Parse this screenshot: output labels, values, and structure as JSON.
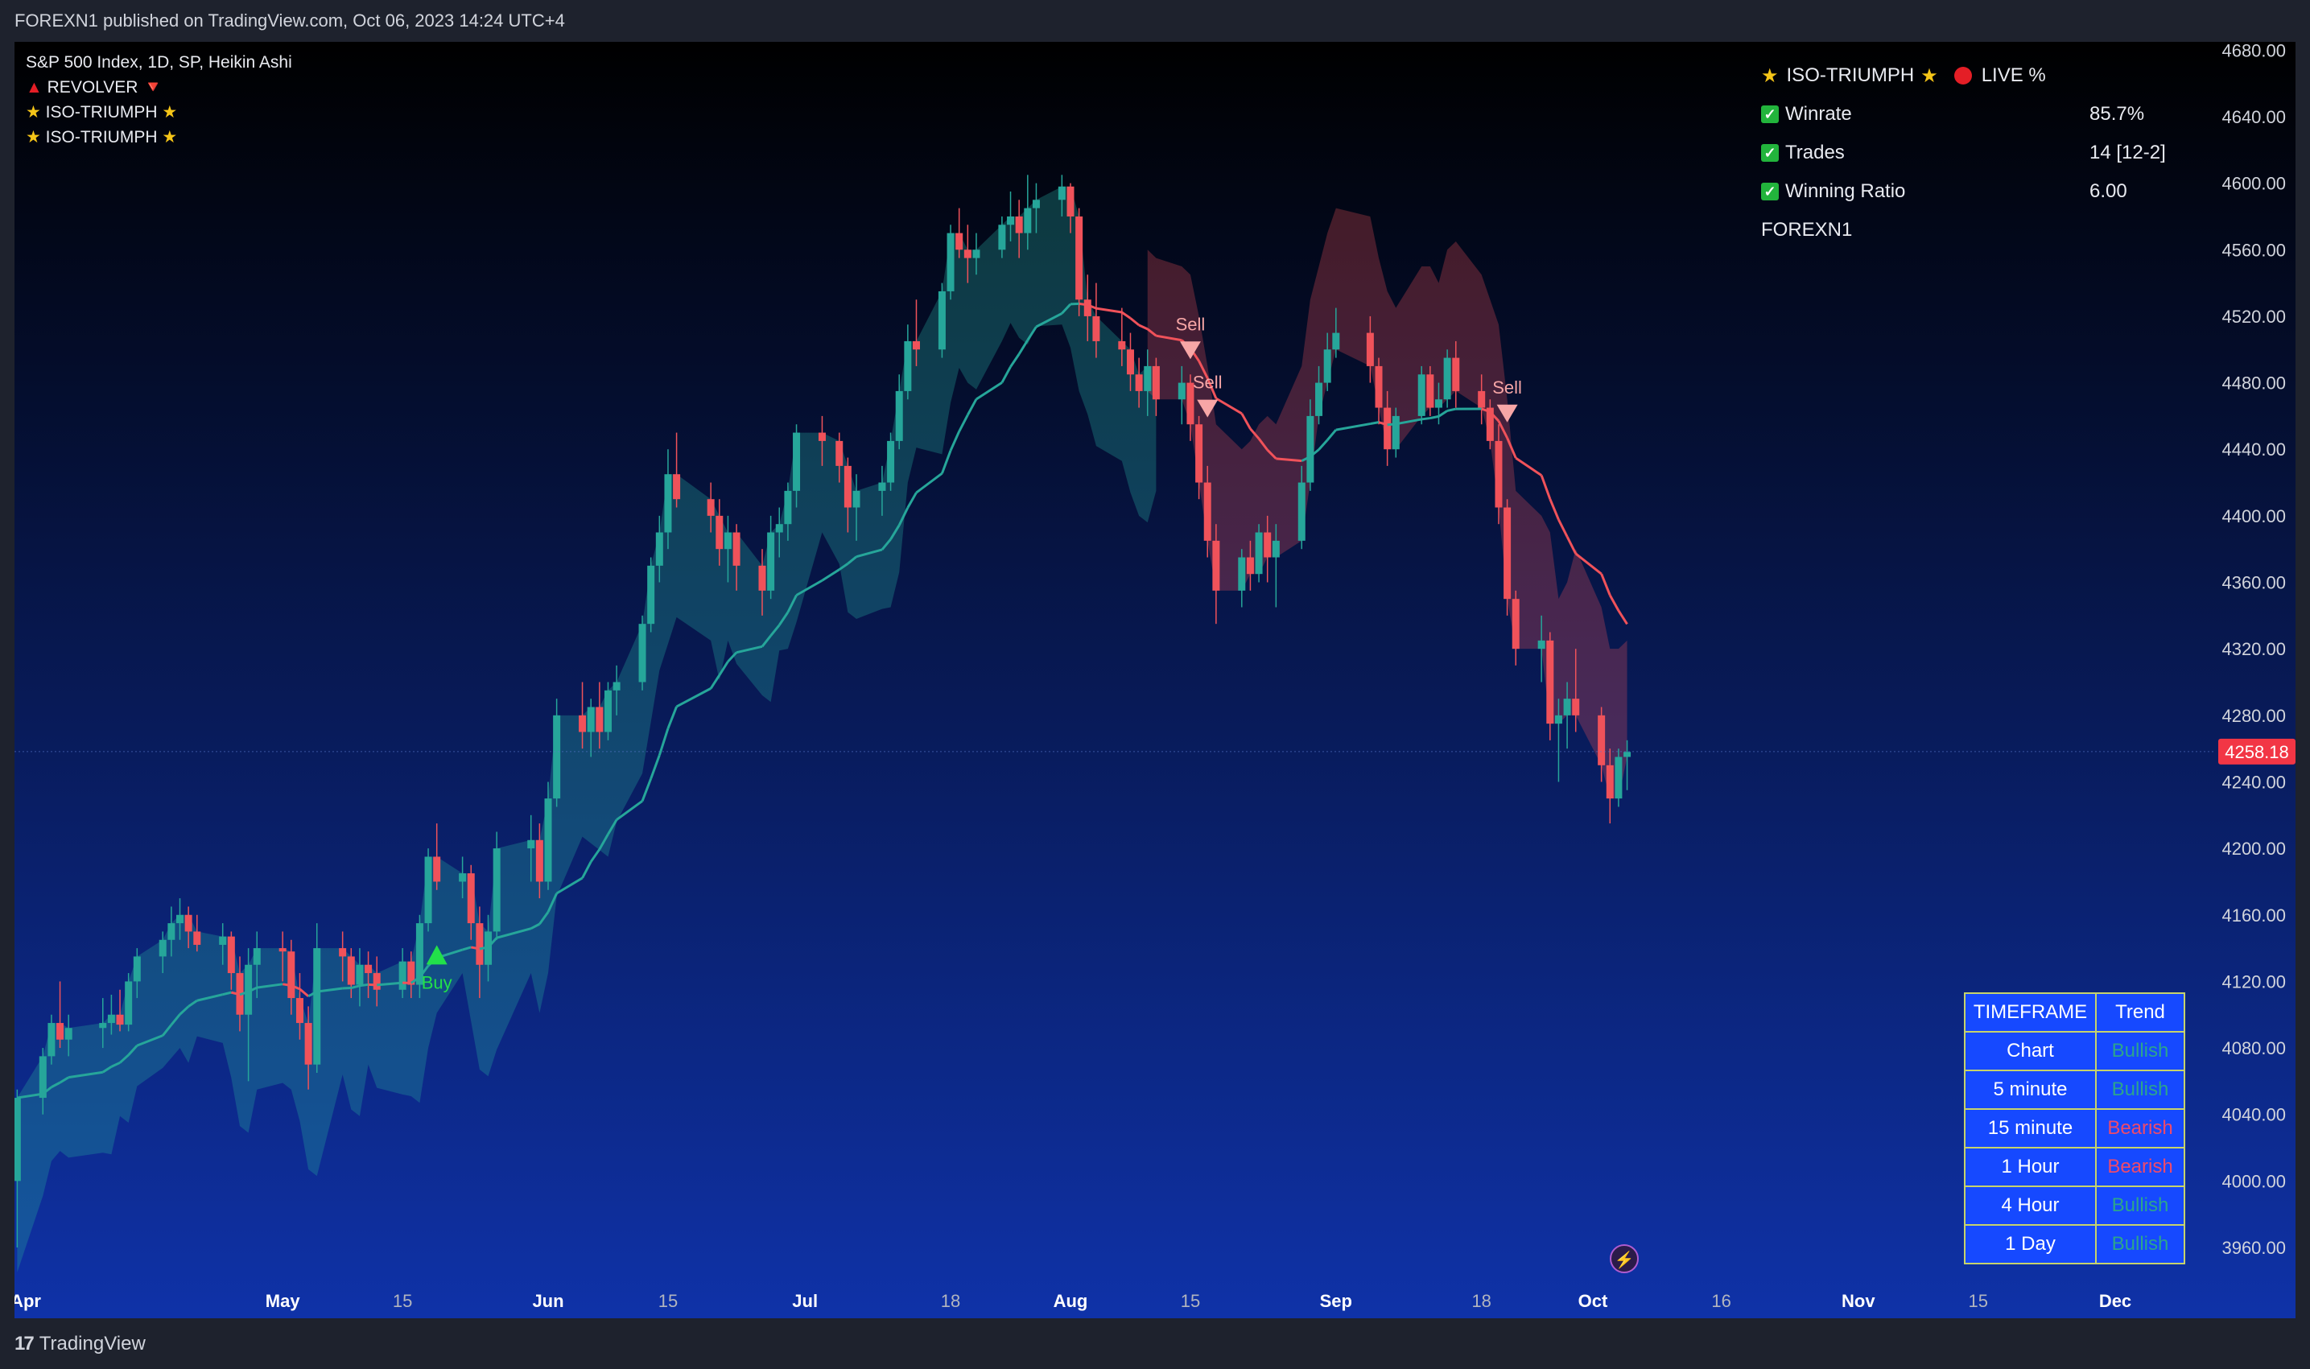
{
  "header": {
    "published": "FOREXN1 published on TradingView.com, Oct 06, 2023 14:24 UTC+4"
  },
  "footer": {
    "brand": "TradingView"
  },
  "legend": {
    "symbol": "S&P 500 Index, 1D, SP, Heikin Ashi",
    "indicator1": "REVOLVER",
    "indicator2": "ISO-TRIUMPH",
    "indicator3": "ISO-TRIUMPH"
  },
  "stats": {
    "title": "ISO-TRIUMPH",
    "live": "LIVE %",
    "rows": [
      {
        "label": "Winrate",
        "value": "85.7%"
      },
      {
        "label": "Trades",
        "value": "14 [12-2]"
      },
      {
        "label": "Winning Ratio",
        "value": "6.00"
      }
    ],
    "author": "FOREXN1"
  },
  "trend_table": {
    "headers": [
      "TIMEFRAME",
      "Trend"
    ],
    "rows": [
      {
        "tf": "Chart",
        "trend": "Bullish"
      },
      {
        "tf": "5 minute",
        "trend": "Bullish"
      },
      {
        "tf": "15 minute",
        "trend": "Bearish"
      },
      {
        "tf": "1 Hour",
        "trend": "Bearish"
      },
      {
        "tf": "4 Hour",
        "trend": "Bullish"
      },
      {
        "tf": "1 Day",
        "trend": "Bullish"
      }
    ]
  },
  "colors": {
    "bull": "#26a69a",
    "bear": "#f0525a",
    "price_label": "#f23645",
    "bg_top": "#000000",
    "bg_bottom": "#0f32a8"
  },
  "chart_data": {
    "type": "candlestick",
    "last_price": "4258.18",
    "y_ticks": [
      "4680.00",
      "4640.00",
      "4600.00",
      "4560.00",
      "4520.00",
      "4480.00",
      "4440.00",
      "4400.00",
      "4360.00",
      "4320.00",
      "4280.00",
      "4240.00",
      "4200.00",
      "4160.00",
      "4120.00",
      "4080.00",
      "4040.00",
      "4000.00",
      "3960.00"
    ],
    "x_ticks": [
      "Apr",
      "May",
      "15",
      "Jun",
      "15",
      "Jul",
      "18",
      "Aug",
      "15",
      "Sep",
      "18",
      "Oct",
      "16",
      "Nov",
      "15",
      "Dec"
    ],
    "ylim": [
      3930,
      4685
    ],
    "signals": [
      {
        "label": "Buy",
        "date": "2023-05-19",
        "price": 4135
      },
      {
        "label": "Sell",
        "date": "2023-08-15",
        "price": 4500
      },
      {
        "label": "Sell",
        "date": "2023-08-17",
        "price": 4465
      },
      {
        "label": "Sell",
        "date": "2023-09-21",
        "price": 4462
      }
    ],
    "candles": [
      [
        "2023-03-31",
        4000,
        4055,
        3960,
        4050
      ],
      [
        "2023-04-03",
        4050,
        4080,
        4040,
        4075
      ],
      [
        "2023-04-04",
        4075,
        4100,
        4070,
        4095
      ],
      [
        "2023-04-05",
        4095,
        4120,
        4080,
        4085
      ],
      [
        "2023-04-06",
        4085,
        4100,
        4075,
        4092
      ],
      [
        "2023-04-10",
        4092,
        4110,
        4080,
        4095
      ],
      [
        "2023-04-11",
        4095,
        4112,
        4088,
        4100
      ],
      [
        "2023-04-12",
        4100,
        4115,
        4090,
        4094
      ],
      [
        "2023-04-13",
        4094,
        4125,
        4090,
        4120
      ],
      [
        "2023-04-14",
        4120,
        4140,
        4110,
        4135
      ],
      [
        "2023-04-17",
        4135,
        4150,
        4125,
        4145
      ],
      [
        "2023-04-18",
        4145,
        4165,
        4135,
        4155
      ],
      [
        "2023-04-19",
        4155,
        4170,
        4145,
        4160
      ],
      [
        "2023-04-20",
        4160,
        4165,
        4140,
        4150
      ],
      [
        "2023-04-21",
        4150,
        4160,
        4138,
        4142
      ],
      [
        "2023-04-24",
        4142,
        4155,
        4130,
        4147
      ],
      [
        "2023-04-25",
        4147,
        4150,
        4115,
        4125
      ],
      [
        "2023-04-26",
        4125,
        4135,
        4090,
        4100
      ],
      [
        "2023-04-27",
        4100,
        4140,
        4060,
        4130
      ],
      [
        "2023-04-28",
        4130,
        4150,
        4110,
        4140
      ],
      [
        "2023-05-01",
        4140,
        4150,
        4120,
        4138
      ],
      [
        "2023-05-02",
        4138,
        4145,
        4100,
        4110
      ],
      [
        "2023-05-03",
        4110,
        4125,
        4085,
        4095
      ],
      [
        "2023-05-04",
        4095,
        4105,
        4055,
        4070
      ],
      [
        "2023-05-05",
        4070,
        4155,
        4065,
        4140
      ],
      [
        "2023-05-08",
        4140,
        4150,
        4120,
        4135
      ],
      [
        "2023-05-09",
        4135,
        4140,
        4110,
        4118
      ],
      [
        "2023-05-10",
        4118,
        4140,
        4105,
        4130
      ],
      [
        "2023-05-11",
        4130,
        4138,
        4110,
        4125
      ],
      [
        "2023-05-12",
        4125,
        4135,
        4105,
        4115
      ],
      [
        "2023-05-15",
        4115,
        4140,
        4110,
        4132
      ],
      [
        "2023-05-16",
        4132,
        4138,
        4110,
        4118
      ],
      [
        "2023-05-17",
        4118,
        4160,
        4110,
        4155
      ],
      [
        "2023-05-18",
        4155,
        4200,
        4150,
        4195
      ],
      [
        "2023-05-19",
        4195,
        4215,
        4175,
        4180
      ],
      [
        "2023-05-22",
        4180,
        4195,
        4170,
        4185
      ],
      [
        "2023-05-23",
        4185,
        4190,
        4145,
        4155
      ],
      [
        "2023-05-24",
        4155,
        4165,
        4110,
        4130
      ],
      [
        "2023-05-25",
        4130,
        4160,
        4120,
        4150
      ],
      [
        "2023-05-26",
        4150,
        4210,
        4145,
        4200
      ],
      [
        "2023-05-30",
        4200,
        4220,
        4180,
        4205
      ],
      [
        "2023-05-31",
        4205,
        4215,
        4170,
        4180
      ],
      [
        "2023-06-01",
        4180,
        4240,
        4175,
        4230
      ],
      [
        "2023-06-02",
        4230,
        4290,
        4225,
        4280
      ],
      [
        "2023-06-05",
        4280,
        4300,
        4260,
        4270
      ],
      [
        "2023-06-06",
        4270,
        4290,
        4255,
        4285
      ],
      [
        "2023-06-07",
        4285,
        4300,
        4260,
        4270
      ],
      [
        "2023-06-08",
        4270,
        4300,
        4265,
        4295
      ],
      [
        "2023-06-09",
        4295,
        4310,
        4280,
        4300
      ],
      [
        "2023-06-12",
        4300,
        4340,
        4295,
        4335
      ],
      [
        "2023-06-13",
        4335,
        4375,
        4330,
        4370
      ],
      [
        "2023-06-14",
        4370,
        4400,
        4360,
        4390
      ],
      [
        "2023-06-15",
        4390,
        4440,
        4380,
        4425
      ],
      [
        "2023-06-16",
        4425,
        4450,
        4405,
        4410
      ],
      [
        "2023-06-20",
        4410,
        4420,
        4390,
        4400
      ],
      [
        "2023-06-21",
        4400,
        4410,
        4370,
        4380
      ],
      [
        "2023-06-22",
        4380,
        4400,
        4360,
        4390
      ],
      [
        "2023-06-23",
        4390,
        4395,
        4355,
        4370
      ],
      [
        "2023-06-26",
        4370,
        4380,
        4340,
        4355
      ],
      [
        "2023-06-27",
        4355,
        4400,
        4350,
        4390
      ],
      [
        "2023-06-28",
        4390,
        4405,
        4375,
        4395
      ],
      [
        "2023-06-29",
        4395,
        4420,
        4385,
        4415
      ],
      [
        "2023-06-30",
        4415,
        4455,
        4405,
        4450
      ],
      [
        "2023-07-03",
        4450,
        4460,
        4430,
        4445
      ],
      [
        "2023-07-05",
        4445,
        4450,
        4420,
        4430
      ],
      [
        "2023-07-06",
        4430,
        4435,
        4390,
        4405
      ],
      [
        "2023-07-07",
        4405,
        4425,
        4385,
        4415
      ],
      [
        "2023-07-10",
        4415,
        4430,
        4400,
        4420
      ],
      [
        "2023-07-11",
        4420,
        4450,
        4415,
        4445
      ],
      [
        "2023-07-12",
        4445,
        4485,
        4440,
        4475
      ],
      [
        "2023-07-13",
        4475,
        4515,
        4470,
        4505
      ],
      [
        "2023-07-14",
        4505,
        4530,
        4490,
        4500
      ],
      [
        "2023-07-17",
        4500,
        4540,
        4495,
        4535
      ],
      [
        "2023-07-18",
        4535,
        4575,
        4530,
        4570
      ],
      [
        "2023-07-19",
        4570,
        4585,
        4555,
        4560
      ],
      [
        "2023-07-20",
        4560,
        4575,
        4540,
        4555
      ],
      [
        "2023-07-21",
        4555,
        4570,
        4545,
        4560
      ],
      [
        "2023-07-24",
        4560,
        4580,
        4555,
        4575
      ],
      [
        "2023-07-25",
        4575,
        4595,
        4565,
        4580
      ],
      [
        "2023-07-26",
        4580,
        4590,
        4555,
        4570
      ],
      [
        "2023-07-27",
        4570,
        4605,
        4560,
        4585
      ],
      [
        "2023-07-28",
        4585,
        4600,
        4570,
        4590
      ],
      [
        "2023-07-31",
        4590,
        4605,
        4580,
        4598
      ],
      [
        "2023-08-01",
        4598,
        4600,
        4570,
        4580
      ],
      [
        "2023-08-02",
        4580,
        4585,
        4520,
        4530
      ],
      [
        "2023-08-03",
        4530,
        4545,
        4505,
        4520
      ],
      [
        "2023-08-04",
        4520,
        4540,
        4495,
        4505
      ],
      [
        "2023-08-07",
        4505,
        4525,
        4490,
        4500
      ],
      [
        "2023-08-08",
        4500,
        4510,
        4475,
        4485
      ],
      [
        "2023-08-09",
        4485,
        4495,
        4465,
        4475
      ],
      [
        "2023-08-10",
        4475,
        4500,
        4460,
        4490
      ],
      [
        "2023-08-11",
        4490,
        4495,
        4460,
        4470
      ],
      [
        "2023-08-14",
        4470,
        4490,
        4455,
        4480
      ],
      [
        "2023-08-15",
        4480,
        4485,
        4445,
        4455
      ],
      [
        "2023-08-16",
        4455,
        4460,
        4410,
        4420
      ],
      [
        "2023-08-17",
        4420,
        4430,
        4375,
        4385
      ],
      [
        "2023-08-18",
        4385,
        4395,
        4335,
        4355
      ],
      [
        "2023-08-21",
        4355,
        4380,
        4345,
        4375
      ],
      [
        "2023-08-22",
        4375,
        4385,
        4355,
        4365
      ],
      [
        "2023-08-23",
        4365,
        4395,
        4360,
        4390
      ],
      [
        "2023-08-24",
        4390,
        4400,
        4360,
        4375
      ],
      [
        "2023-08-25",
        4375,
        4395,
        4345,
        4385
      ],
      [
        "2023-08-28",
        4385,
        4430,
        4380,
        4420
      ],
      [
        "2023-08-29",
        4420,
        4470,
        4415,
        4460
      ],
      [
        "2023-08-30",
        4460,
        4490,
        4455,
        4480
      ],
      [
        "2023-08-31",
        4480,
        4510,
        4475,
        4500
      ],
      [
        "2023-09-01",
        4500,
        4525,
        4495,
        4510
      ],
      [
        "2023-09-05",
        4510,
        4520,
        4480,
        4490
      ],
      [
        "2023-09-06",
        4490,
        4495,
        4455,
        4465
      ],
      [
        "2023-09-07",
        4465,
        4475,
        4430,
        4440
      ],
      [
        "2023-09-08",
        4440,
        4465,
        4435,
        4460
      ],
      [
        "2023-09-11",
        4460,
        4490,
        4455,
        4485
      ],
      [
        "2023-09-12",
        4485,
        4490,
        4460,
        4465
      ],
      [
        "2023-09-13",
        4465,
        4480,
        4455,
        4470
      ],
      [
        "2023-09-14",
        4470,
        4500,
        4465,
        4495
      ],
      [
        "2023-09-15",
        4495,
        4505,
        4465,
        4475
      ],
      [
        "2023-09-18",
        4475,
        4485,
        4455,
        4465
      ],
      [
        "2023-09-19",
        4465,
        4470,
        4440,
        4445
      ],
      [
        "2023-09-20",
        4445,
        4455,
        4395,
        4405
      ],
      [
        "2023-09-21",
        4405,
        4410,
        4340,
        4350
      ],
      [
        "2023-09-22",
        4350,
        4355,
        4310,
        4320
      ],
      [
        "2023-09-25",
        4320,
        4340,
        4300,
        4325
      ],
      [
        "2023-09-26",
        4325,
        4330,
        4265,
        4275
      ],
      [
        "2023-09-27",
        4275,
        4290,
        4240,
        4280
      ],
      [
        "2023-09-28",
        4280,
        4300,
        4260,
        4290
      ],
      [
        "2023-09-29",
        4290,
        4320,
        4270,
        4280
      ],
      [
        "2023-10-02",
        4280,
        4285,
        4240,
        4250
      ],
      [
        "2023-10-03",
        4250,
        4260,
        4215,
        4230
      ],
      [
        "2023-10-04",
        4230,
        4260,
        4225,
        4255
      ],
      [
        "2023-10-05",
        4255,
        4265,
        4235,
        4258
      ]
    ]
  }
}
